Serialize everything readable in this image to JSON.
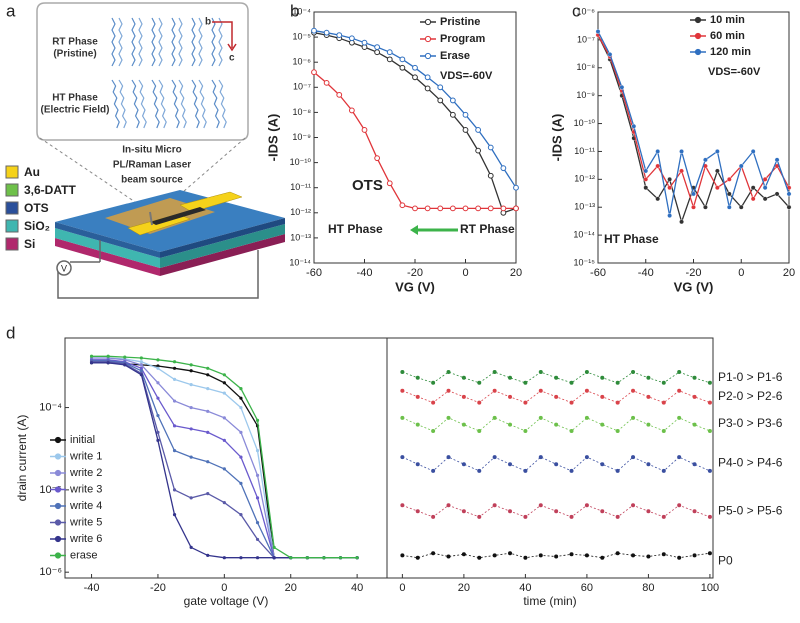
{
  "diagram": {
    "panel_label": "a",
    "rt_phase": [
      "RT Phase",
      "(Pristine)"
    ],
    "ht_phase": [
      "HT Phase",
      "(Electric Field)"
    ],
    "axis_b": "b",
    "axis_c": "c",
    "laser": [
      "In-situ Micro",
      "PL/Raman Laser",
      "beam source"
    ],
    "layers": [
      "Au",
      "3,6-DATT",
      "OTS",
      "SiO₂",
      "Si"
    ],
    "source": "V"
  },
  "chart_data": [
    {
      "type": "line",
      "panel_label": "b",
      "x_label": "VG (V)",
      "y_label": "-IDS (A)",
      "log_y": true,
      "legend": "upper right",
      "x": [
        -60,
        -55,
        -50,
        -45,
        -40,
        -35,
        -30,
        -25,
        -20,
        -15,
        -10,
        -5,
        0,
        5,
        10,
        15,
        20
      ],
      "xlim": [
        -60,
        20
      ],
      "xticks": [
        -60,
        -40,
        -20,
        0,
        20
      ],
      "ylim": [
        1e-14,
        0.0001
      ],
      "yticks": [
        {
          "value": 0.0001,
          "label": "10⁻⁴"
        },
        {
          "value": 1e-05,
          "label": "10⁻⁵"
        },
        {
          "value": 1e-06,
          "label": "10⁻⁶"
        },
        {
          "value": 1e-07,
          "label": "10⁻⁷"
        },
        {
          "value": 1e-08,
          "label": "10⁻⁸"
        },
        {
          "value": 1e-09,
          "label": "10⁻⁹"
        },
        {
          "value": 1e-10,
          "label": "10⁻¹⁰"
        },
        {
          "value": 1e-11,
          "label": "10⁻¹¹"
        },
        {
          "value": 1e-12,
          "label": "10⁻¹²"
        },
        {
          "value": 1e-13,
          "label": "10⁻¹³"
        },
        {
          "value": 1e-14,
          "label": "10⁻¹⁴"
        }
      ],
      "series": [
        {
          "name": "Pristine",
          "color": "#333333",
          "values": [
            1.5e-05,
            1.2e-05,
            9e-06,
            6e-06,
            4e-06,
            2.5e-06,
            1.3e-06,
            6e-07,
            2.5e-07,
            9e-08,
            3e-08,
            8e-09,
            2e-09,
            3e-10,
            3e-11,
            1e-12,
            1.5e-12
          ]
        },
        {
          "name": "Program",
          "color": "#e0353a",
          "values": [
            4e-07,
            1.5e-07,
            5e-08,
            1.2e-08,
            2e-09,
            1.5e-10,
            1.5e-11,
            2e-12,
            1.5e-12,
            1.5e-12,
            1.5e-12,
            1.5e-12,
            1.5e-12,
            1.5e-12,
            1.5e-12,
            1.5e-12,
            1.5e-12
          ]
        },
        {
          "name": "Erase",
          "color": "#2f6fc0",
          "values": [
            1.8e-05,
            1.5e-05,
            1.2e-05,
            9e-06,
            6e-06,
            4e-06,
            2.5e-06,
            1.3e-06,
            6e-07,
            2.5e-07,
            1e-07,
            3e-08,
            8e-09,
            2e-09,
            4e-10,
            6e-11,
            1e-11
          ]
        }
      ],
      "annotations": [
        {
          "text": "VDS=-60V",
          "color": "#222222"
        },
        {
          "text": "OTS",
          "color": "#e0353a"
        },
        {
          "text": "HT Phase",
          "color": "#2a4f9a"
        },
        {
          "text": "RT Phase",
          "color": "#2a4f9a"
        }
      ]
    },
    {
      "type": "line",
      "panel_label": "c",
      "x_label": "VG (V)",
      "y_label": "-IDS (A)",
      "log_y": true,
      "legend": "upper right",
      "x": [
        -60,
        -55,
        -50,
        -45,
        -40,
        -35,
        -30,
        -25,
        -20,
        -15,
        -10,
        -5,
        0,
        5,
        10,
        15,
        20
      ],
      "xlim": [
        -60,
        20
      ],
      "xticks": [
        -60,
        -40,
        -20,
        0,
        20
      ],
      "ylim": [
        1e-15,
        1e-06
      ],
      "yticks": [
        {
          "value": 1e-06,
          "label": "10⁻⁶"
        },
        {
          "value": 1e-07,
          "label": "10⁻⁷"
        },
        {
          "value": 1e-08,
          "label": "10⁻⁸"
        },
        {
          "value": 1e-09,
          "label": "10⁻⁹"
        },
        {
          "value": 1e-10,
          "label": "10⁻¹⁰"
        },
        {
          "value": 1e-11,
          "label": "10⁻¹¹"
        },
        {
          "value": 1e-12,
          "label": "10⁻¹²"
        },
        {
          "value": 1e-13,
          "label": "10⁻¹³"
        },
        {
          "value": 1e-14,
          "label": "10⁻¹⁴"
        },
        {
          "value": 1e-15,
          "label": "10⁻¹⁵"
        }
      ],
      "series": [
        {
          "name": "10 min",
          "color": "#333333",
          "values": [
            1.5e-07,
            2e-08,
            1e-09,
            3e-11,
            5e-13,
            2e-13,
            1e-12,
            3e-14,
            5e-13,
            1e-13,
            2e-12,
            3e-13,
            1e-13,
            5e-13,
            2e-13,
            3e-13,
            1e-13
          ]
        },
        {
          "name": "60 min",
          "color": "#e0353a",
          "values": [
            1.5e-07,
            2.5e-08,
            1.5e-09,
            5e-11,
            1e-12,
            3e-12,
            5e-13,
            2e-12,
            1e-13,
            3e-12,
            5e-13,
            1e-12,
            3e-12,
            2e-13,
            1e-12,
            3e-12,
            5e-13
          ]
        },
        {
          "name": "120 min",
          "color": "#2f6fc0",
          "values": [
            2e-07,
            3e-08,
            2e-09,
            8e-11,
            2e-12,
            1e-11,
            5e-14,
            1e-11,
            3e-13,
            5e-12,
            1e-11,
            1e-13,
            3e-12,
            1e-11,
            5e-13,
            5e-12,
            3e-13
          ]
        }
      ],
      "annotations": [
        {
          "text": "VDS=-60V",
          "color": "#222222"
        },
        {
          "text": "HT Phase",
          "color": "#2a4f9a"
        }
      ]
    },
    {
      "type": "line",
      "panel_label": "d",
      "x_label": "gate voltage (V)",
      "y_label": "drain current (A)",
      "log_y": true,
      "legend": "center left",
      "x": [
        -40,
        -35,
        -30,
        -25,
        -20,
        -15,
        -10,
        -5,
        0,
        5,
        10,
        15,
        20,
        25,
        30,
        35,
        40
      ],
      "xlim": [
        -48,
        49
      ],
      "xticks": [
        -40,
        -20,
        0,
        20,
        40
      ],
      "ylim": [
        8.5e-07,
        0.0007
      ],
      "yticks": [
        {
          "value": 1e-06,
          "label": "10⁻⁶"
        },
        {
          "value": 1e-05,
          "label": "10⁻⁵"
        },
        {
          "value": 0.0001,
          "label": "10⁻⁴"
        }
      ],
      "series": [
        {
          "name": "initial",
          "color": "#111111",
          "values": [
            0.00035,
            0.00035,
            0.00034,
            0.00033,
            0.00032,
            0.0003,
            0.00028,
            0.00025,
            0.0002,
            0.00013,
            6e-05,
            1.5e-06,
            1.5e-06,
            1.5e-06,
            1.5e-06,
            1.5e-06,
            1.5e-06
          ]
        },
        {
          "name": "write 1",
          "color": "#9cc8ec",
          "values": [
            0.0004,
            0.0004,
            0.00039,
            0.00036,
            0.0003,
            0.00022,
            0.00019,
            0.00017,
            0.00015,
            0.0001,
            3e-05,
            1.5e-06,
            1.5e-06,
            1.5e-06,
            1.5e-06,
            1.5e-06,
            1.5e-06
          ]
        },
        {
          "name": "write 2",
          "color": "#8a8ad8",
          "values": [
            0.0004,
            0.0004,
            0.00038,
            0.00033,
            0.0002,
            0.00012,
            0.0001,
            9e-05,
            7.5e-05,
            5e-05,
            1.5e-05,
            1.5e-06,
            1.5e-06,
            1.5e-06,
            1.5e-06,
            1.5e-06,
            1.5e-06
          ]
        },
        {
          "name": "write 3",
          "color": "#6a5acd",
          "values": [
            0.00038,
            0.00038,
            0.00036,
            0.0003,
            0.00013,
            6e-05,
            5.5e-05,
            5e-05,
            4e-05,
            2.5e-05,
            8e-06,
            1.5e-06,
            1.5e-06,
            1.5e-06,
            1.5e-06,
            1.5e-06,
            1.5e-06
          ]
        },
        {
          "name": "write 4",
          "color": "#4f72b8",
          "values": [
            0.00037,
            0.00037,
            0.00035,
            0.00028,
            8e-05,
            3e-05,
            2.5e-05,
            2.2e-05,
            1.8e-05,
            1.2e-05,
            4e-06,
            1.5e-06,
            1.5e-06,
            1.5e-06,
            1.5e-06,
            1.5e-06,
            1.5e-06
          ]
        },
        {
          "name": "write 5",
          "color": "#5a5aa8",
          "values": [
            0.00036,
            0.00036,
            0.00034,
            0.00026,
            5e-05,
            1e-05,
            8e-06,
            9e-06,
            7e-06,
            5e-06,
            2.5e-06,
            1.5e-06,
            1.5e-06,
            1.5e-06,
            1.5e-06,
            1.5e-06,
            1.5e-06
          ]
        },
        {
          "name": "write 6",
          "color": "#34348c",
          "values": [
            0.00035,
            0.00035,
            0.00033,
            0.00025,
            4e-05,
            5e-06,
            2e-06,
            1.6e-06,
            1.5e-06,
            1.5e-06,
            1.5e-06,
            1.5e-06,
            1.5e-06,
            1.5e-06,
            1.5e-06,
            1.5e-06,
            1.5e-06
          ]
        },
        {
          "name": "erase",
          "color": "#3cb34a",
          "values": [
            0.00042,
            0.00042,
            0.00041,
            0.0004,
            0.00038,
            0.00036,
            0.00033,
            0.0003,
            0.00025,
            0.00017,
            7e-05,
            2e-06,
            1.5e-06,
            1.5e-06,
            1.5e-06,
            1.5e-06,
            1.5e-06
          ]
        }
      ]
    },
    {
      "type": "scatter",
      "x_label": "time (min)",
      "log_y": true,
      "legend": "right",
      "x": [
        0,
        5,
        10,
        15,
        20,
        25,
        30,
        35,
        40,
        45,
        50,
        55,
        60,
        65,
        70,
        75,
        80,
        85,
        90,
        95,
        100
      ],
      "xlim": [
        -5,
        101
      ],
      "xticks": [
        0,
        20,
        40,
        60,
        80,
        100
      ],
      "ylim": [
        8.5e-07,
        0.0007
      ],
      "series": [
        {
          "name": "P1-0 > P1-6",
          "color": "#2e8b3a",
          "values": [
            0.00027,
            0.00023,
            0.0002,
            0.00027,
            0.00023,
            0.0002,
            0.00027,
            0.00023,
            0.0002,
            0.00027,
            0.00023,
            0.0002,
            0.00027,
            0.00023,
            0.0002,
            0.00027,
            0.00023,
            0.0002,
            0.00027,
            0.00023,
            0.0002
          ]
        },
        {
          "name": "P2-0 > P2-6",
          "color": "#d9434a",
          "values": [
            0.00016,
            0.000135,
            0.000115,
            0.00016,
            0.000135,
            0.000115,
            0.00016,
            0.000135,
            0.000115,
            0.00016,
            0.000135,
            0.000115,
            0.00016,
            0.000135,
            0.000115,
            0.00016,
            0.000135,
            0.000115,
            0.00016,
            0.000135,
            0.000115
          ]
        },
        {
          "name": "P3-0 > P3-6",
          "color": "#6cc04a",
          "values": [
            7.5e-05,
            6.2e-05,
            5.2e-05,
            7.5e-05,
            6.2e-05,
            5.2e-05,
            7.5e-05,
            6.2e-05,
            5.2e-05,
            7.5e-05,
            6.2e-05,
            5.2e-05,
            7.5e-05,
            6.2e-05,
            5.2e-05,
            7.5e-05,
            6.2e-05,
            5.2e-05,
            7.5e-05,
            6.2e-05,
            5.2e-05
          ]
        },
        {
          "name": "P4-0 > P4-6",
          "color": "#3a4fa0",
          "values": [
            2.5e-05,
            2.05e-05,
            1.7e-05,
            2.5e-05,
            2.05e-05,
            1.7e-05,
            2.5e-05,
            2.05e-05,
            1.7e-05,
            2.5e-05,
            2.05e-05,
            1.7e-05,
            2.5e-05,
            2.05e-05,
            1.7e-05,
            2.5e-05,
            2.05e-05,
            1.7e-05,
            2.5e-05,
            2.05e-05,
            1.7e-05
          ]
        },
        {
          "name": "P5-0 > P5-6",
          "color": "#c0405a",
          "values": [
            6.5e-06,
            5.5e-06,
            4.7e-06,
            6.5e-06,
            5.5e-06,
            4.7e-06,
            6.5e-06,
            5.5e-06,
            4.7e-06,
            6.5e-06,
            5.5e-06,
            4.7e-06,
            6.5e-06,
            5.5e-06,
            4.7e-06,
            6.5e-06,
            5.5e-06,
            4.7e-06,
            6.5e-06,
            5.5e-06,
            4.7e-06
          ]
        },
        {
          "name": "P0",
          "color": "#111111",
          "values": [
            1.6e-06,
            1.5e-06,
            1.7e-06,
            1.55e-06,
            1.65e-06,
            1.5e-06,
            1.6e-06,
            1.7e-06,
            1.5e-06,
            1.6e-06,
            1.55e-06,
            1.65e-06,
            1.6e-06,
            1.5e-06,
            1.7e-06,
            1.6e-06,
            1.55e-06,
            1.65e-06,
            1.5e-06,
            1.6e-06,
            1.7e-06
          ]
        }
      ]
    }
  ]
}
